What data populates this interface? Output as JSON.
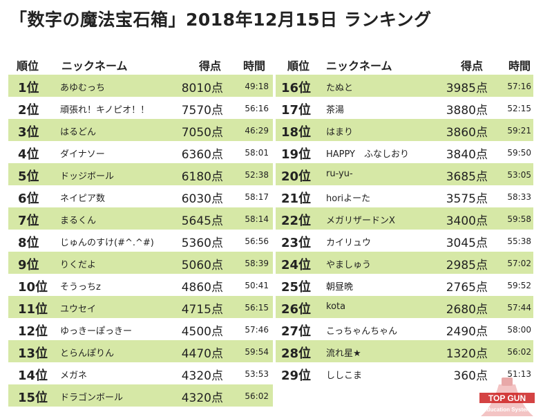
{
  "title": "「数字の魔法宝石箱」2018年12月15日 ランキング",
  "headers": {
    "rank": "順位",
    "name": "ニックネーム",
    "score": "得点",
    "time": "時間"
  },
  "left_rows": [
    {
      "rank": "1位",
      "name": "あゆむっち",
      "score": "8010点",
      "time": "49:18"
    },
    {
      "rank": "2位",
      "name": "頑張れ！キノピオ！！",
      "score": "7570点",
      "time": "56:16"
    },
    {
      "rank": "3位",
      "name": "はるどん",
      "score": "7050点",
      "time": "46:29"
    },
    {
      "rank": "4位",
      "name": "ダイナソー",
      "score": "6360点",
      "time": "58:01"
    },
    {
      "rank": "5位",
      "name": "ドッジボール",
      "score": "6180点",
      "time": "52:38"
    },
    {
      "rank": "6位",
      "name": "ネイピア数",
      "score": "6030点",
      "time": "58:17"
    },
    {
      "rank": "7位",
      "name": "まるくん",
      "score": "5645点",
      "time": "58:14"
    },
    {
      "rank": "8位",
      "name": "じゅんのすけ(#^.^#)",
      "score": "5360点",
      "time": "56:56"
    },
    {
      "rank": "9位",
      "name": "りくだよ",
      "score": "5060点",
      "time": "58:39"
    },
    {
      "rank": "10位",
      "name": "そうっちz",
      "score": "4860点",
      "time": "50:41"
    },
    {
      "rank": "11位",
      "name": "ユウセイ",
      "score": "4715点",
      "time": "56:15"
    },
    {
      "rank": "12位",
      "name": "ゆっきーぽっきー",
      "score": "4500点",
      "time": "57:46"
    },
    {
      "rank": "13位",
      "name": "とらんぽりん",
      "score": "4470点",
      "time": "59:54"
    },
    {
      "rank": "14位",
      "name": "メガネ",
      "score": "4320点",
      "time": "53:53"
    },
    {
      "rank": "15位",
      "name": "ドラゴンボール",
      "score": "4320点",
      "time": "56:02"
    }
  ],
  "right_rows": [
    {
      "rank": "16位",
      "name": "たぬと",
      "score": "3985点",
      "time": "57:16"
    },
    {
      "rank": "17位",
      "name": "茶湯",
      "score": "3880点",
      "time": "52:15"
    },
    {
      "rank": "18位",
      "name": "はまり",
      "score": "3860点",
      "time": "59:21"
    },
    {
      "rank": "19位",
      "name": "HAPPY　ふなしおり",
      "score": "3840点",
      "time": "59:50"
    },
    {
      "rank": "20位",
      "name": "ru-yu-",
      "score": "3685点",
      "time": "53:05"
    },
    {
      "rank": "21位",
      "name": "horiよーた",
      "score": "3575点",
      "time": "58:33"
    },
    {
      "rank": "22位",
      "name": "メガリザードンX",
      "score": "3400点",
      "time": "59:58"
    },
    {
      "rank": "23位",
      "name": "カイリュウ",
      "score": "3045点",
      "time": "55:38"
    },
    {
      "rank": "24位",
      "name": "やましゅう",
      "score": "2985点",
      "time": "57:02"
    },
    {
      "rank": "25位",
      "name": "朝昼晩",
      "score": "2765点",
      "time": "59:52"
    },
    {
      "rank": "26位",
      "name": "kota",
      "score": "2680点",
      "time": "57:44"
    },
    {
      "rank": "27位",
      "name": "こっちゃんちゃん",
      "score": "2490点",
      "time": "58:00"
    },
    {
      "rank": "28位",
      "name": "流れ星★",
      "score": "1320点",
      "time": "56:02"
    },
    {
      "rank": "29位",
      "name": "ししこま",
      "score": "360点",
      "time": "51:13"
    }
  ],
  "logo": {
    "line1": "TOP GUN",
    "line2": "Education System"
  },
  "colors": {
    "row_shade": "#d6e8a6",
    "logo_red": "#cc2222",
    "logo_pink": "#f3c4c4"
  }
}
